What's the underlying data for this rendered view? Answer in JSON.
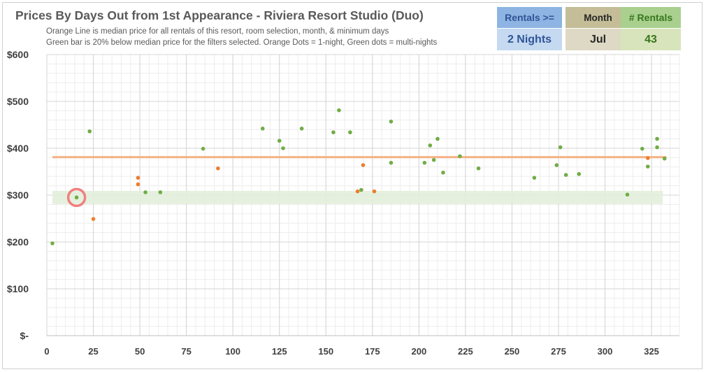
{
  "header": {
    "title": "Prices By Days Out from 1st Appearance - Riviera Resort Studio (Duo)",
    "subtitle_line1": "Orange Line is median price for all rentals of this resort, room selection, month, & minimum days",
    "subtitle_line2": "Green bar is 20% below median price for the filters selected. Orange Dots = 1-night, Green dots = multi-nights"
  },
  "kpis": {
    "rentals_label": "Rentals >=",
    "rentals_value": "2 Nights",
    "month_label": "Month",
    "month_value": "Jul",
    "count_label": "# Rentals",
    "count_value": "43"
  },
  "colors": {
    "orange": "#ed7d31",
    "green": "#70ad47",
    "band": "#e2efda",
    "highlight": "#f08080"
  },
  "chart_data": {
    "type": "scatter",
    "title": "Prices By Days Out from 1st Appearance - Riviera Resort Studio (Duo)",
    "xlabel": "",
    "ylabel": "",
    "xlim": [
      0,
      340
    ],
    "ylim": [
      0,
      600
    ],
    "x_ticks": [
      0,
      25,
      50,
      75,
      100,
      125,
      150,
      175,
      200,
      225,
      250,
      275,
      300,
      325
    ],
    "y_ticks": [
      {
        "value": 0,
        "label": "$-"
      },
      {
        "value": 100,
        "label": "$100"
      },
      {
        "value": 200,
        "label": "$200"
      },
      {
        "value": 300,
        "label": "$300"
      },
      {
        "value": 400,
        "label": "$400"
      },
      {
        "value": 500,
        "label": "$500"
      },
      {
        "value": 600,
        "label": "$600"
      }
    ],
    "grid": true,
    "median_price": 381,
    "median_line_range": [
      3,
      333
    ],
    "discount_band": {
      "low": 281,
      "high": 309,
      "x_range": [
        3,
        331
      ]
    },
    "highlight_point": {
      "x": 16,
      "y": 295
    },
    "series": [
      {
        "color": "#70ad47",
        "points": [
          [
            3,
            197
          ],
          [
            16,
            295
          ],
          [
            23,
            436
          ],
          [
            53,
            306
          ],
          [
            61,
            306
          ],
          [
            84,
            399
          ],
          [
            116,
            442
          ],
          [
            125,
            416
          ],
          [
            127,
            400
          ],
          [
            137,
            442
          ],
          [
            154,
            434
          ],
          [
            157,
            481
          ],
          [
            163,
            434
          ],
          [
            169,
            311
          ],
          [
            185,
            457
          ],
          [
            185,
            369
          ],
          [
            203,
            369
          ],
          [
            206,
            406
          ],
          [
            208,
            375
          ],
          [
            210,
            420
          ],
          [
            213,
            348
          ],
          [
            222,
            383
          ],
          [
            232,
            357
          ],
          [
            262,
            337
          ],
          [
            274,
            364
          ],
          [
            276,
            402
          ],
          [
            279,
            343
          ],
          [
            286,
            345
          ],
          [
            312,
            301
          ],
          [
            320,
            399
          ],
          [
            323,
            361
          ],
          [
            328,
            420
          ],
          [
            328,
            402
          ],
          [
            332,
            378
          ]
        ]
      },
      {
        "color": "#ed7d31",
        "points": [
          [
            25,
            249
          ],
          [
            49,
            337
          ],
          [
            49,
            323
          ],
          [
            92,
            357
          ],
          [
            167,
            308
          ],
          [
            170,
            364
          ],
          [
            176,
            308
          ],
          [
            323,
            379
          ]
        ]
      }
    ]
  }
}
